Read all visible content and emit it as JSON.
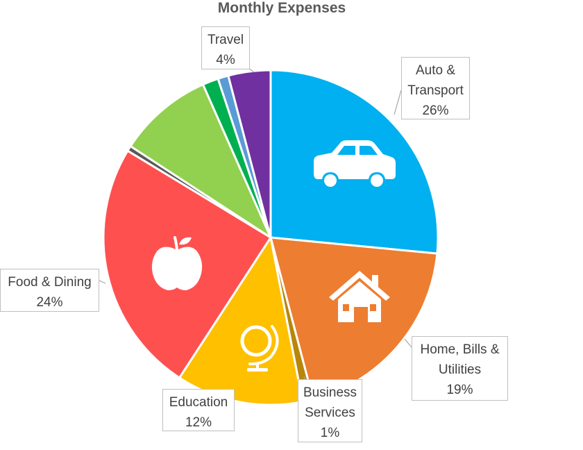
{
  "chart_data": {
    "type": "pie",
    "title": "Monthly Expenses",
    "start_angle_deg": 0,
    "direction": "clockwise",
    "slices": [
      {
        "label": "Auto & Transport",
        "value": 26,
        "percent_label": "26%",
        "color": "#00b0f0",
        "icon": "car-icon",
        "callout": true
      },
      {
        "label": "Home, Bills & Utilities",
        "value": 19,
        "percent_label": "19%",
        "color": "#ed7d31",
        "icon": "house-icon",
        "callout": true
      },
      {
        "label": "Business Services",
        "value": 1,
        "percent_label": "1%",
        "color": "#b8860b",
        "icon": "",
        "callout": true
      },
      {
        "label": "Education",
        "value": 12,
        "percent_label": "12%",
        "color": "#ffc000",
        "icon": "globe-icon",
        "callout": true
      },
      {
        "label": "Food & Dining",
        "value": 24,
        "percent_label": "24%",
        "color": "#ff5050",
        "icon": "apple-icon",
        "callout": true
      },
      {
        "label": "",
        "value": 0.5,
        "percent_label": "",
        "color": "#595959",
        "icon": "",
        "callout": false
      },
      {
        "label": "",
        "value": 9,
        "percent_label": "",
        "color": "#92d050",
        "icon": "",
        "callout": false
      },
      {
        "label": "",
        "value": 1.5,
        "percent_label": "",
        "color": "#00b050",
        "icon": "",
        "callout": false
      },
      {
        "label": "",
        "value": 1,
        "percent_label": "",
        "color": "#5b9bd5",
        "icon": "",
        "callout": false
      },
      {
        "label": "Travel",
        "value": 4,
        "percent_label": "4%",
        "color": "#7030a0",
        "icon": "",
        "callout": true
      }
    ]
  },
  "callouts": {
    "auto": {
      "line1": "Auto &",
      "line2": "Transport",
      "line3": "26%"
    },
    "home": {
      "line1": "Home, Bills &",
      "line2": "Utilities",
      "line3": "19%"
    },
    "business": {
      "line1": "Business",
      "line2": "Services",
      "line3": "1%"
    },
    "education": {
      "line1": "Education",
      "line2": "12%"
    },
    "food": {
      "line1": "Food & Dining",
      "line2": "24%"
    },
    "travel": {
      "line1": "Travel",
      "line2": "4%"
    }
  }
}
